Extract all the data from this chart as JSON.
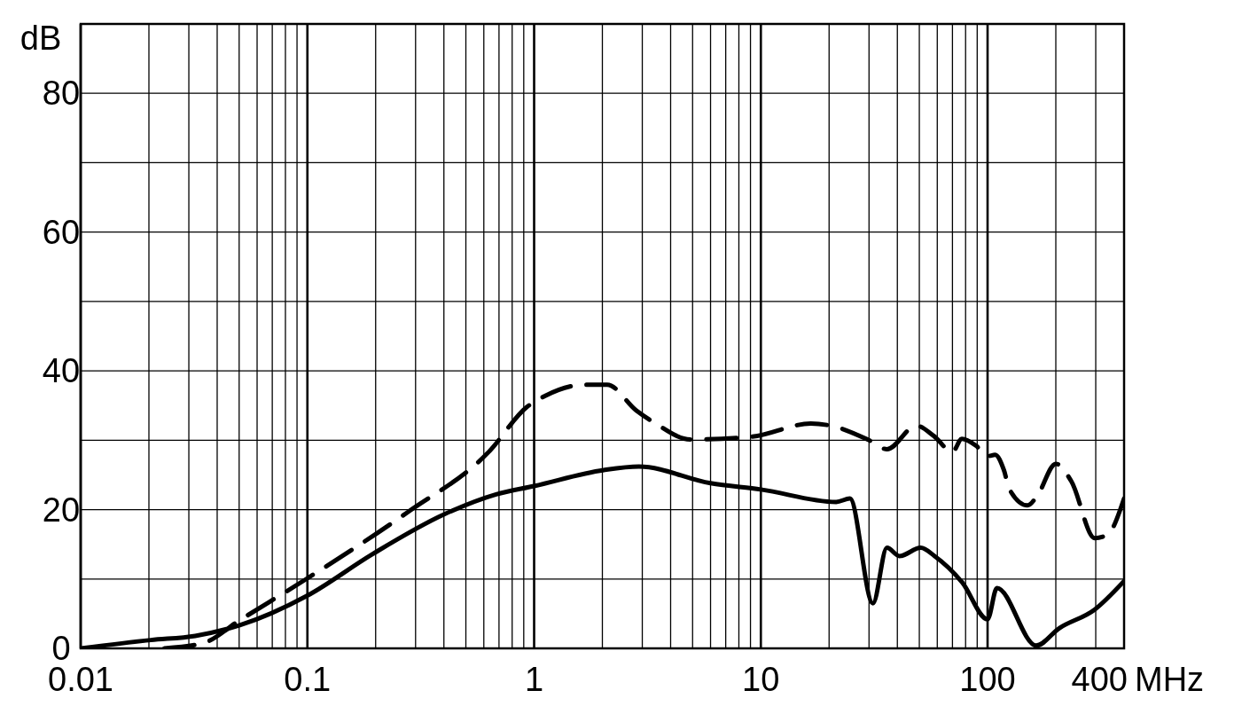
{
  "chart_data": {
    "type": "line",
    "xlabel": "MHz",
    "ylabel": "dB",
    "log": "x",
    "grid": true,
    "marker": "none",
    "xlim": [
      0.01,
      400
    ],
    "ylim": [
      0,
      90
    ],
    "xticks": [
      0.01,
      {
        "value": 0.02,
        "label": null
      },
      {
        "value": 0.03,
        "label": null
      },
      {
        "value": 0.04,
        "label": null
      },
      {
        "value": 0.05,
        "label": null
      },
      {
        "value": 0.06,
        "label": null
      },
      {
        "value": 0.07,
        "label": null
      },
      {
        "value": 0.08,
        "label": null
      },
      {
        "value": 0.09,
        "label": null
      },
      0.1,
      {
        "value": 0.2,
        "label": null
      },
      {
        "value": 0.3,
        "label": null
      },
      {
        "value": 0.4,
        "label": null
      },
      {
        "value": 0.5,
        "label": null
      },
      {
        "value": 0.6,
        "label": null
      },
      {
        "value": 0.7,
        "label": null
      },
      {
        "value": 0.8,
        "label": null
      },
      {
        "value": 0.9,
        "label": null
      },
      1,
      {
        "value": 2,
        "label": null
      },
      {
        "value": 3,
        "label": null
      },
      {
        "value": 4,
        "label": null
      },
      {
        "value": 5,
        "label": null
      },
      {
        "value": 6,
        "label": null
      },
      {
        "value": 7,
        "label": null
      },
      {
        "value": 8,
        "label": null
      },
      {
        "value": 9,
        "label": null
      },
      10,
      {
        "value": 20,
        "label": null
      },
      {
        "value": 30,
        "label": null
      },
      {
        "value": 40,
        "label": null
      },
      {
        "value": 50,
        "label": null
      },
      {
        "value": 60,
        "label": null
      },
      {
        "value": 70,
        "label": null
      },
      {
        "value": 80,
        "label": null
      },
      {
        "value": 90,
        "label": null
      },
      100,
      {
        "value": 200,
        "label": null
      },
      {
        "value": 300,
        "label": null
      },
      400
    ],
    "yticks": [
      0,
      {
        "value": 10,
        "label": null
      },
      20,
      {
        "value": 30,
        "label": null
      },
      40,
      {
        "value": 50,
        "label": null
      },
      60,
      {
        "value": 70,
        "label": null
      },
      80,
      {
        "value": 90,
        "label": null
      }
    ],
    "series": [
      {
        "color": "#000000",
        "line_style": "solid",
        "x": [
          0.01,
          0.0204,
          0.032,
          0.05,
          0.1,
          0.194,
          0.4,
          0.68,
          1,
          2.03,
          2.9,
          6,
          10,
          21.5,
          24.7,
          31.2,
          36,
          40.9,
          50.7,
          58.4,
          77.3,
          100,
          110,
          164,
          207,
          297,
          400
        ],
        "values": [
          0,
          1.2,
          1.8,
          3.3,
          7.6,
          13.6,
          19.3,
          22.2,
          23.4,
          25.7,
          26.2,
          23.8,
          22.9,
          21.1,
          21.6,
          6.5,
          14.5,
          13.3,
          14.5,
          13.3,
          9.5,
          4.2,
          8.7,
          0.4,
          2.9,
          5.6,
          9.7
        ]
      },
      {
        "color": "#000000",
        "line_style": "dashed",
        "x": [
          0.0234,
          0.035,
          0.05,
          0.1,
          0.276,
          0.63,
          0.93,
          1.12,
          1.67,
          2.1,
          2.82,
          3.4,
          4.9,
          9.1,
          16.6,
          20.3,
          29.6,
          36,
          48.5,
          58,
          70,
          77,
          89,
          100,
          108,
          118,
          125,
          150,
          165,
          200,
          234,
          297,
          338,
          400
        ],
        "values": [
          0,
          0.8,
          4,
          10.1,
          19.6,
          28.3,
          34.8,
          36.4,
          38,
          38,
          34.3,
          32.5,
          30.1,
          30.5,
          32.4,
          32.1,
          30.1,
          28.7,
          32.1,
          30.6,
          28.3,
          30.2,
          29.2,
          27.7,
          27.9,
          25.7,
          22.9,
          20.6,
          21.9,
          26.6,
          24.1,
          15.9,
          16.4,
          21.6
        ]
      }
    ]
  }
}
